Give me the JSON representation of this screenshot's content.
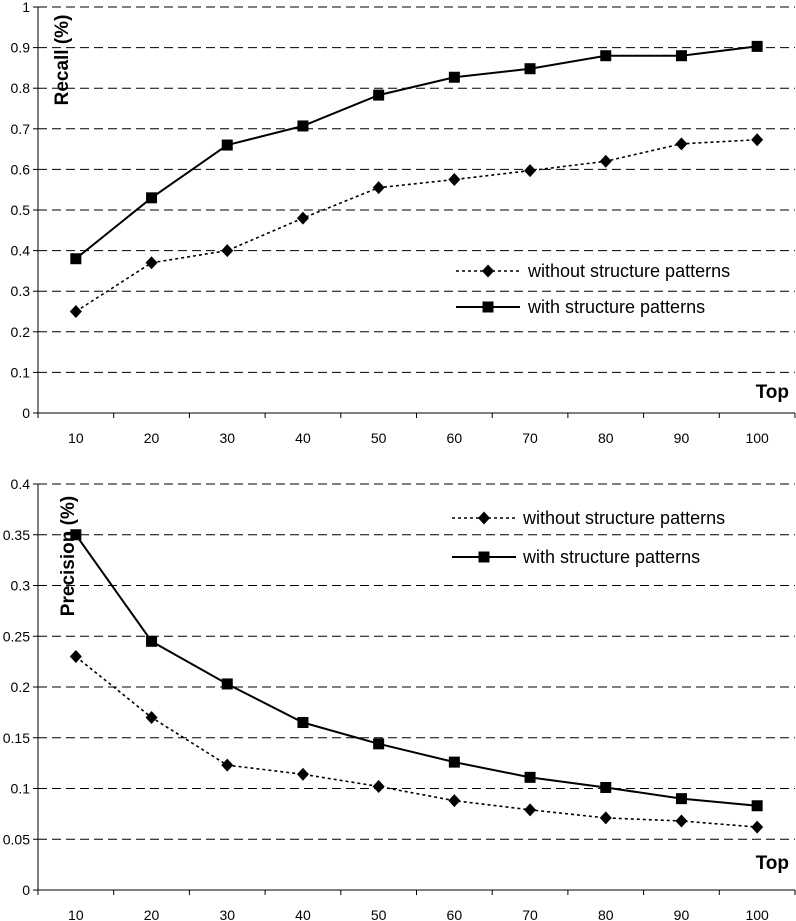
{
  "chart_data": [
    {
      "type": "line",
      "title": "",
      "xlabel": "Top",
      "ylabel": "Recall (%)",
      "categories": [
        "10",
        "20",
        "30",
        "40",
        "50",
        "60",
        "70",
        "80",
        "90",
        "100"
      ],
      "ylim": [
        0,
        1
      ],
      "yticks": [
        "0",
        "0.1",
        "0.2",
        "0.3",
        "0.4",
        "0.5",
        "0.6",
        "0.7",
        "0.8",
        "0.9",
        "1"
      ],
      "grid": true,
      "legend_position": "right",
      "series": [
        {
          "name": "without structure patterns",
          "marker": "diamond",
          "line": "dotted",
          "values": [
            0.25,
            0.37,
            0.4,
            0.48,
            0.555,
            0.575,
            0.597,
            0.62,
            0.663,
            0.673
          ]
        },
        {
          "name": "with structure patterns",
          "marker": "square",
          "line": "solid",
          "values": [
            0.38,
            0.53,
            0.66,
            0.707,
            0.783,
            0.827,
            0.848,
            0.88,
            0.88,
            0.903
          ]
        }
      ]
    },
    {
      "type": "line",
      "title": "",
      "xlabel": "Top",
      "ylabel": "Precision (%)",
      "categories": [
        "10",
        "20",
        "30",
        "40",
        "50",
        "60",
        "70",
        "80",
        "90",
        "100"
      ],
      "ylim": [
        0,
        0.4
      ],
      "yticks": [
        "0",
        "0.05",
        "0.1",
        "0.15",
        "0.2",
        "0.25",
        "0.3",
        "0.35",
        "0.4"
      ],
      "grid": true,
      "legend_position": "top-right",
      "series": [
        {
          "name": "without structure patterns",
          "marker": "diamond",
          "line": "dotted",
          "values": [
            0.23,
            0.17,
            0.123,
            0.114,
            0.102,
            0.088,
            0.079,
            0.071,
            0.068,
            0.062
          ]
        },
        {
          "name": "with structure patterns",
          "marker": "square",
          "line": "solid",
          "values": [
            0.35,
            0.245,
            0.203,
            0.165,
            0.144,
            0.126,
            0.111,
            0.101,
            0.09,
            0.083
          ]
        }
      ]
    }
  ]
}
